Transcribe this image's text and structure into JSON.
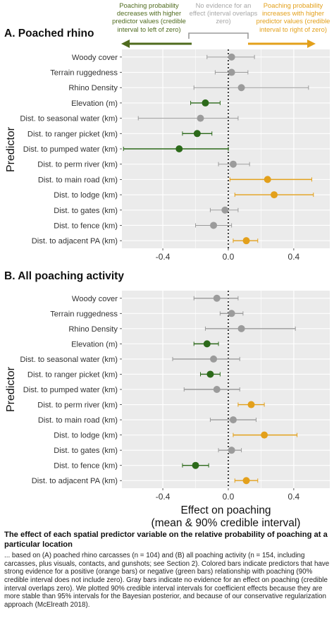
{
  "legend": {
    "left_text": "Poaching probability decreases with higher predictor values (credible interval to left of zero)",
    "middle_text": "No evidence for an effect (interval overlaps zero)",
    "right_text": "Poaching probability increases with higher predictor values (credible interval to right of zero)"
  },
  "colors": {
    "negative": "#2c6a1a",
    "negative_arrow": "#4f6b1e",
    "null": "#9b9b9b",
    "positive": "#e3a01b",
    "panel_bg": "#ebebeb",
    "grid": "#ffffff"
  },
  "chart_data": [
    {
      "type": "scatter",
      "title": "A. Poached rhino",
      "ylabel": "Predictor",
      "xlabel": "",
      "xlim": [
        -0.65,
        0.62
      ],
      "xticks": [
        -0.4,
        0.0,
        0.4
      ],
      "xtick_labels": [
        "-0.4",
        "0.0",
        "0.4"
      ],
      "reference_line": 0,
      "categories": [
        "Woody cover",
        "Terrain ruggedness",
        "Rhino Density",
        "Elevation (m)",
        "Dist. to seasonal water (km)",
        "Dist. to ranger picket (km)",
        "Dist. to pumped water (km)",
        "Dist. to perm river (km)",
        "Dist. to main road (km)",
        "Dist. to lodge (km)",
        "Dist. to gates (km)",
        "Dist. to fence (km)",
        "Dist. to adjacent PA (km)"
      ],
      "estimates": [
        0.02,
        0.02,
        0.08,
        -0.14,
        -0.17,
        -0.19,
        -0.3,
        0.03,
        0.24,
        0.28,
        -0.02,
        -0.09,
        0.11
      ],
      "lower": [
        -0.13,
        -0.08,
        -0.21,
        -0.23,
        -0.55,
        -0.28,
        -0.64,
        -0.06,
        0.01,
        0.04,
        -0.11,
        -0.2,
        0.03
      ],
      "upper": [
        0.16,
        0.12,
        0.49,
        -0.05,
        0.06,
        -0.1,
        0.0,
        0.13,
        0.51,
        0.52,
        0.06,
        0.02,
        0.18
      ],
      "effect": [
        "none",
        "none",
        "none",
        "negative",
        "none",
        "negative",
        "negative",
        "none",
        "positive",
        "positive",
        "none",
        "none",
        "positive"
      ]
    },
    {
      "type": "scatter",
      "title": "B. All poaching activity",
      "ylabel": "Predictor",
      "xlabel": "Effect on poaching (mean & 90% credible interval)",
      "xlim": [
        -0.65,
        0.62
      ],
      "xticks": [
        -0.4,
        0.0,
        0.4
      ],
      "xtick_labels": [
        "-0.4",
        "0.0",
        "0.4"
      ],
      "reference_line": 0,
      "categories": [
        "Woody cover",
        "Terrain ruggedness",
        "Rhino Density",
        "Elevation (m)",
        "Dist. to seasonal water (km)",
        "Dist. to ranger picket (km)",
        "Dist. to pumped water (km)",
        "Dist. to perm river (km)",
        "Dist. to main road (km)",
        "Dist. to lodge (km)",
        "Dist. to gates (km)",
        "Dist. to fence (km)",
        "Dist. to adjacent PA (km)"
      ],
      "estimates": [
        -0.07,
        0.02,
        0.08,
        -0.13,
        -0.09,
        -0.11,
        -0.07,
        0.14,
        0.03,
        0.22,
        0.02,
        -0.2,
        0.11
      ],
      "lower": [
        -0.21,
        -0.05,
        -0.14,
        -0.21,
        -0.34,
        -0.17,
        -0.27,
        0.06,
        -0.11,
        0.03,
        -0.06,
        -0.28,
        0.04
      ],
      "upper": [
        0.06,
        0.09,
        0.41,
        -0.06,
        0.07,
        -0.05,
        0.07,
        0.22,
        0.17,
        0.42,
        0.08,
        -0.12,
        0.18
      ],
      "effect": [
        "none",
        "none",
        "none",
        "negative",
        "none",
        "negative",
        "none",
        "positive",
        "none",
        "positive",
        "none",
        "negative",
        "positive"
      ]
    }
  ],
  "caption": {
    "title": "The effect of each spatial predictor variable on the relative probability of poaching at a particular location",
    "body": "... based on (A) poached rhino carcasses (n = 104) and (B) all poaching activity (n = 154, including carcasses, plus visuals, contacts, and gunshots; see Section 2). Colored bars indicate predictors that have strong evidence for a positive (orange bars) or negative (green bars) relationship with poaching (90% credible interval does not include zero). Gray bars indicate no evidence for an effect on poaching (credible interval overlaps zero). We plotted 90% credible interval intervals for coefficient effects because they are more stable than 95% intervals for the Bayesian posterior, and because of our conservative regularization approach (McElreath 2018)."
  }
}
